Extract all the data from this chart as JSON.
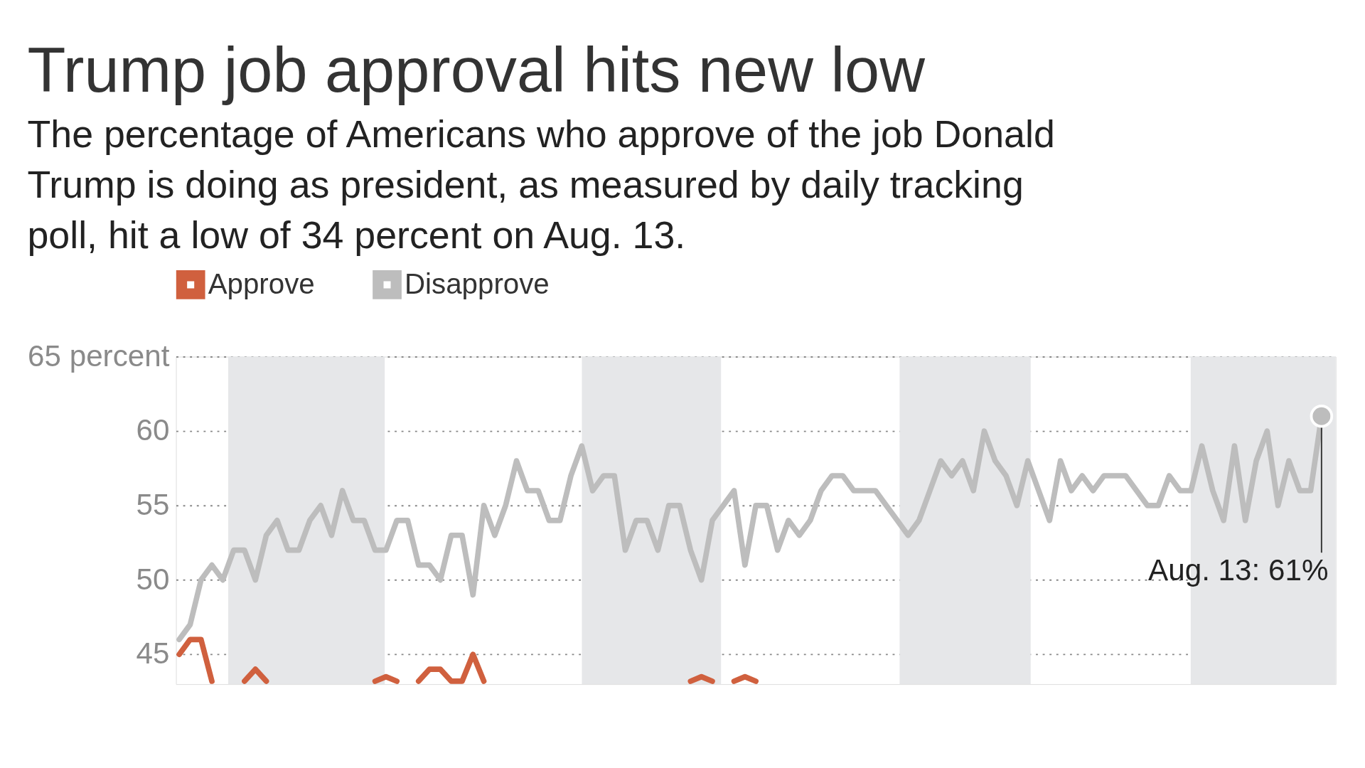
{
  "chart_data": {
    "type": "line",
    "title": "Trump job approval hits new low",
    "subtitle": "The percentage of Americans who approve of the job Donald Trump is doing as president, as measured by daily tracking poll, hit a low of 34 percent on Aug. 13.",
    "categories": [
      null,
      null,
      null,
      null,
      null,
      null,
      null,
      null,
      null,
      null,
      null,
      null,
      null,
      null,
      null,
      null,
      null,
      null,
      null,
      null,
      null,
      null,
      null,
      null,
      null,
      null,
      null,
      null,
      null,
      null,
      null,
      null,
      null,
      null,
      null,
      null,
      null,
      null,
      null,
      null,
      null,
      null,
      null,
      null,
      null,
      null,
      null,
      null,
      null,
      null,
      null,
      null,
      null,
      null,
      null,
      null,
      null,
      null,
      null,
      null,
      null,
      null,
      null,
      null,
      null,
      null,
      null,
      null,
      null,
      null,
      null,
      null,
      null,
      null,
      null,
      null,
      null,
      null,
      null,
      null,
      null,
      null,
      null,
      null,
      null,
      null,
      null,
      null,
      null,
      null,
      null,
      null,
      null,
      null,
      null,
      null,
      null,
      null,
      null,
      null,
      null,
      null,
      null,
      null,
      null,
      null
    ],
    "series": [
      {
        "name": "Approve",
        "color": "#d0603e",
        "values": [
          45,
          46,
          46,
          43.2,
          null,
          null,
          43.2,
          44,
          43.2,
          null,
          null,
          null,
          null,
          null,
          null,
          null,
          null,
          null,
          43.2,
          43.5,
          43.2,
          null,
          43.2,
          44,
          44,
          43.2,
          43.2,
          45,
          43.2,
          null,
          null,
          null,
          null,
          null,
          null,
          null,
          null,
          null,
          null,
          null,
          null,
          null,
          null,
          null,
          null,
          null,
          null,
          43.2,
          43.5,
          43.2,
          null,
          43.2,
          43.5,
          43.2,
          null,
          null,
          null,
          null,
          null,
          null,
          null,
          null,
          null,
          null,
          null,
          null,
          null,
          null,
          null,
          null,
          null,
          null,
          null,
          null,
          null,
          null,
          null,
          null,
          null,
          null,
          null,
          null,
          null,
          null,
          null,
          null,
          null,
          null,
          null,
          null,
          null,
          null,
          null,
          null,
          null,
          null,
          null,
          null,
          null,
          null,
          null,
          null,
          null,
          null,
          null,
          null
        ]
      },
      {
        "name": "Disapprove",
        "color": "#bdbdbd",
        "values": [
          46,
          47,
          50,
          51,
          50,
          52,
          52,
          50,
          53,
          54,
          52,
          52,
          54,
          55,
          53,
          56,
          54,
          54,
          52,
          52,
          54,
          54,
          51,
          51,
          50,
          53,
          53,
          49,
          55,
          53,
          55,
          58,
          56,
          56,
          54,
          54,
          57,
          59,
          56,
          57,
          57,
          52,
          54,
          54,
          52,
          55,
          55,
          52,
          50,
          54,
          55,
          56,
          51,
          55,
          55,
          52,
          54,
          53,
          54,
          56,
          57,
          57,
          56,
          56,
          56,
          55,
          54,
          53,
          54,
          56,
          58,
          57,
          58,
          56,
          60,
          58,
          57,
          55,
          58,
          56,
          54,
          58,
          56,
          57,
          56,
          57,
          57,
          57,
          56,
          55,
          55,
          57,
          56,
          56,
          59,
          56,
          54,
          59,
          54,
          58,
          60,
          55,
          58,
          56,
          56,
          61
        ]
      }
    ],
    "ylim": [
      43,
      65
    ],
    "yticks": [
      45,
      50,
      55,
      60,
      {
        "value": 65,
        "label": "65 percent"
      }
    ],
    "grid": "y",
    "tick_labels": "y",
    "legend": "top",
    "line_style": "solid",
    "annotations": [
      "Aug. 13: 61%"
    ]
  }
}
